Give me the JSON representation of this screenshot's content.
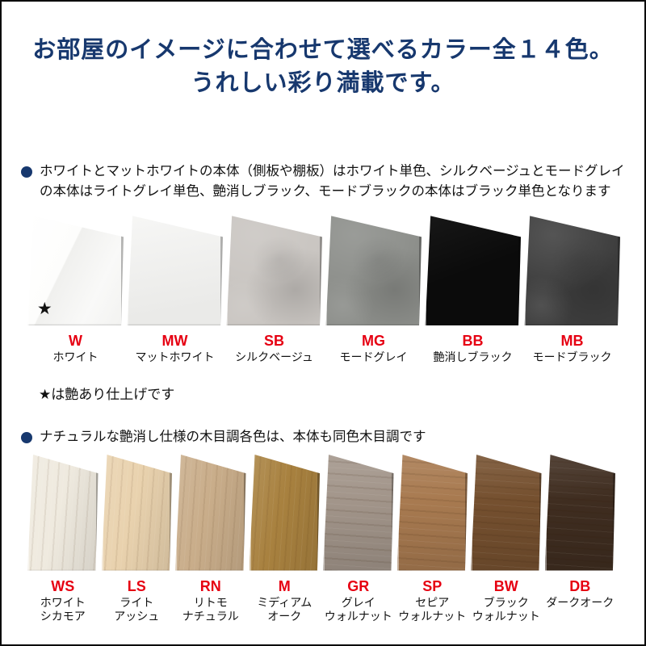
{
  "title": {
    "line1": "お部屋のイメージに合わせて選べるカラー全１４色。",
    "line2": "うれしい彩り満載です。"
  },
  "section_solid": {
    "bullet_text": "ホワイトとマットホワイトの本体（側板や棚板）はホワイト単色、シルクベージュとモードグレイの本体はライトグレイ単色、艶消しブラック、モードブラックの本体はブラック単色となります",
    "note": "★は艶あり仕上げです",
    "gloss_star": "★",
    "swatches": [
      {
        "code": "W",
        "name_lines": [
          "ホワイト"
        ],
        "color": "#f8f8f7",
        "finish": "gloss",
        "star": true
      },
      {
        "code": "MW",
        "name_lines": [
          "マットホワイト"
        ],
        "color": "#f2f2f0",
        "finish": "matte"
      },
      {
        "code": "SB",
        "name_lines": [
          "シルクベージュ"
        ],
        "color": "#c9c5c1",
        "finish": "stone"
      },
      {
        "code": "MG",
        "name_lines": [
          "モードグレイ"
        ],
        "color": "#8c8e8a",
        "finish": "stone"
      },
      {
        "code": "BB",
        "name_lines": [
          "艶消しブラック"
        ],
        "color": "#0b0b0b",
        "finish": "flat"
      },
      {
        "code": "MB",
        "name_lines": [
          "モードブラック"
        ],
        "color": "#3d3d3d",
        "finish": "stone"
      }
    ]
  },
  "section_wood": {
    "bullet_text": "ナチュラルな艶消し仕様の木目調各色は、本体も同色木目調です",
    "swatches": [
      {
        "code": "WS",
        "name_lines": [
          "ホワイト",
          "シカモア"
        ],
        "color": "#efeadf",
        "finish": "wood",
        "grain": "v"
      },
      {
        "code": "LS",
        "name_lines": [
          "ライト",
          "アッシュ"
        ],
        "color": "#e9d2ae",
        "finish": "wood",
        "grain": "v"
      },
      {
        "code": "RN",
        "name_lines": [
          "リトモ",
          "ナチュラル"
        ],
        "color": "#c9ad8a",
        "finish": "wood",
        "grain": "v"
      },
      {
        "code": "M",
        "name_lines": [
          "ミディアム",
          "オーク"
        ],
        "color": "#a8813f",
        "finish": "wood",
        "grain": "v"
      },
      {
        "code": "GR",
        "name_lines": [
          "グレイ",
          "ウォルナット"
        ],
        "color": "#a2958a",
        "finish": "wood",
        "grain": "h"
      },
      {
        "code": "SP",
        "name_lines": [
          "セピア",
          "ウォルナット"
        ],
        "color": "#a87a50",
        "finish": "wood",
        "grain": "h"
      },
      {
        "code": "BW",
        "name_lines": [
          "ブラック",
          "ウォルナット"
        ],
        "color": "#75502f",
        "finish": "wood",
        "grain": "h"
      },
      {
        "code": "DB",
        "name_lines": [
          "ダークオーク"
        ],
        "color": "#3f2d20",
        "finish": "wood",
        "grain": "h"
      }
    ]
  },
  "colors": {
    "title_navy": "#17386e",
    "code_red": "#e60012",
    "text_black": "#111111",
    "border_black": "#0a0a0a"
  }
}
